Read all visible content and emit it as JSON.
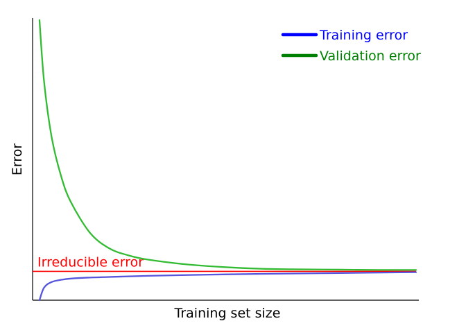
{
  "chart_data": {
    "type": "line",
    "xlabel": "Training set size",
    "ylabel": "Error",
    "xlim": [
      0,
      1
    ],
    "ylim": [
      0,
      1
    ],
    "legend_position": "top-right",
    "series": [
      {
        "name": "Training error",
        "color": "#0000ff",
        "line_color": "#5555dd",
        "x": [
          0.018,
          0.03,
          0.05,
          0.08,
          0.12,
          0.2,
          0.3,
          0.45,
          0.6,
          0.8,
          1.0
        ],
        "y": [
          0.0,
          0.045,
          0.065,
          0.074,
          0.079,
          0.083,
          0.087,
          0.091,
          0.094,
          0.097,
          0.1
        ]
      },
      {
        "name": "Validation error",
        "color": "#008000",
        "line_color": "#33bb33",
        "x": [
          0.018,
          0.03,
          0.05,
          0.075,
          0.1,
          0.15,
          0.2,
          0.25,
          0.3,
          0.4,
          0.5,
          0.6,
          0.7,
          0.8,
          0.9,
          1.0
        ],
        "y": [
          1.0,
          0.78,
          0.58,
          0.44,
          0.35,
          0.24,
          0.185,
          0.16,
          0.145,
          0.128,
          0.118,
          0.112,
          0.11,
          0.109,
          0.108,
          0.108
        ]
      }
    ],
    "reference_lines": [
      {
        "label": "Irreducible error",
        "y": 0.103,
        "color": "#ff0000"
      }
    ]
  }
}
